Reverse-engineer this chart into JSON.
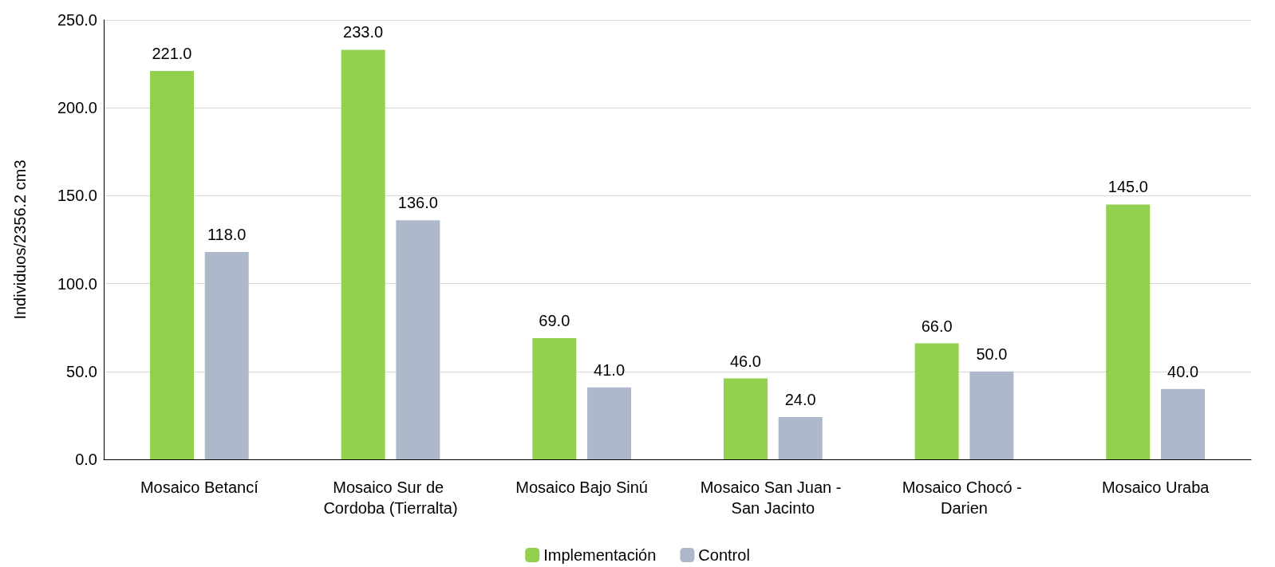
{
  "chart_data": {
    "type": "bar",
    "ylabel": "Individuos/2356.2 cm3",
    "categories": [
      "Mosaico Betancí",
      "Mosaico Sur de Cordoba (Tierralta)",
      "Mosaico Bajo Sinú",
      "Mosaico San Juan - San Jacinto",
      "Mosaico Chocó - Darien",
      "Mosaico Uraba"
    ],
    "series": [
      {
        "name": "Implementación",
        "color": "#92d050",
        "values": [
          221,
          233,
          69,
          46,
          66,
          145
        ],
        "value_labels": [
          "221.0",
          "233.0",
          "69.0",
          "46.0",
          "66.0",
          "145.0"
        ]
      },
      {
        "name": "Control",
        "color": "#adb9ca",
        "values": [
          118,
          136,
          41,
          24,
          50,
          40
        ],
        "value_labels": [
          "118.0",
          "136.0",
          "41.0",
          "24.0",
          "50.0",
          "40.0"
        ]
      }
    ],
    "ylim": [
      0,
      250
    ],
    "yticks": [
      {
        "value": 0,
        "label": "0.0"
      },
      {
        "value": 50,
        "label": "50.0"
      },
      {
        "value": 100,
        "label": "100.0"
      },
      {
        "value": 150,
        "label": "150.0"
      },
      {
        "value": 200,
        "label": "200.0"
      },
      {
        "value": 250,
        "label": "250.0"
      }
    ],
    "grid": "y",
    "legend": "bottom"
  }
}
